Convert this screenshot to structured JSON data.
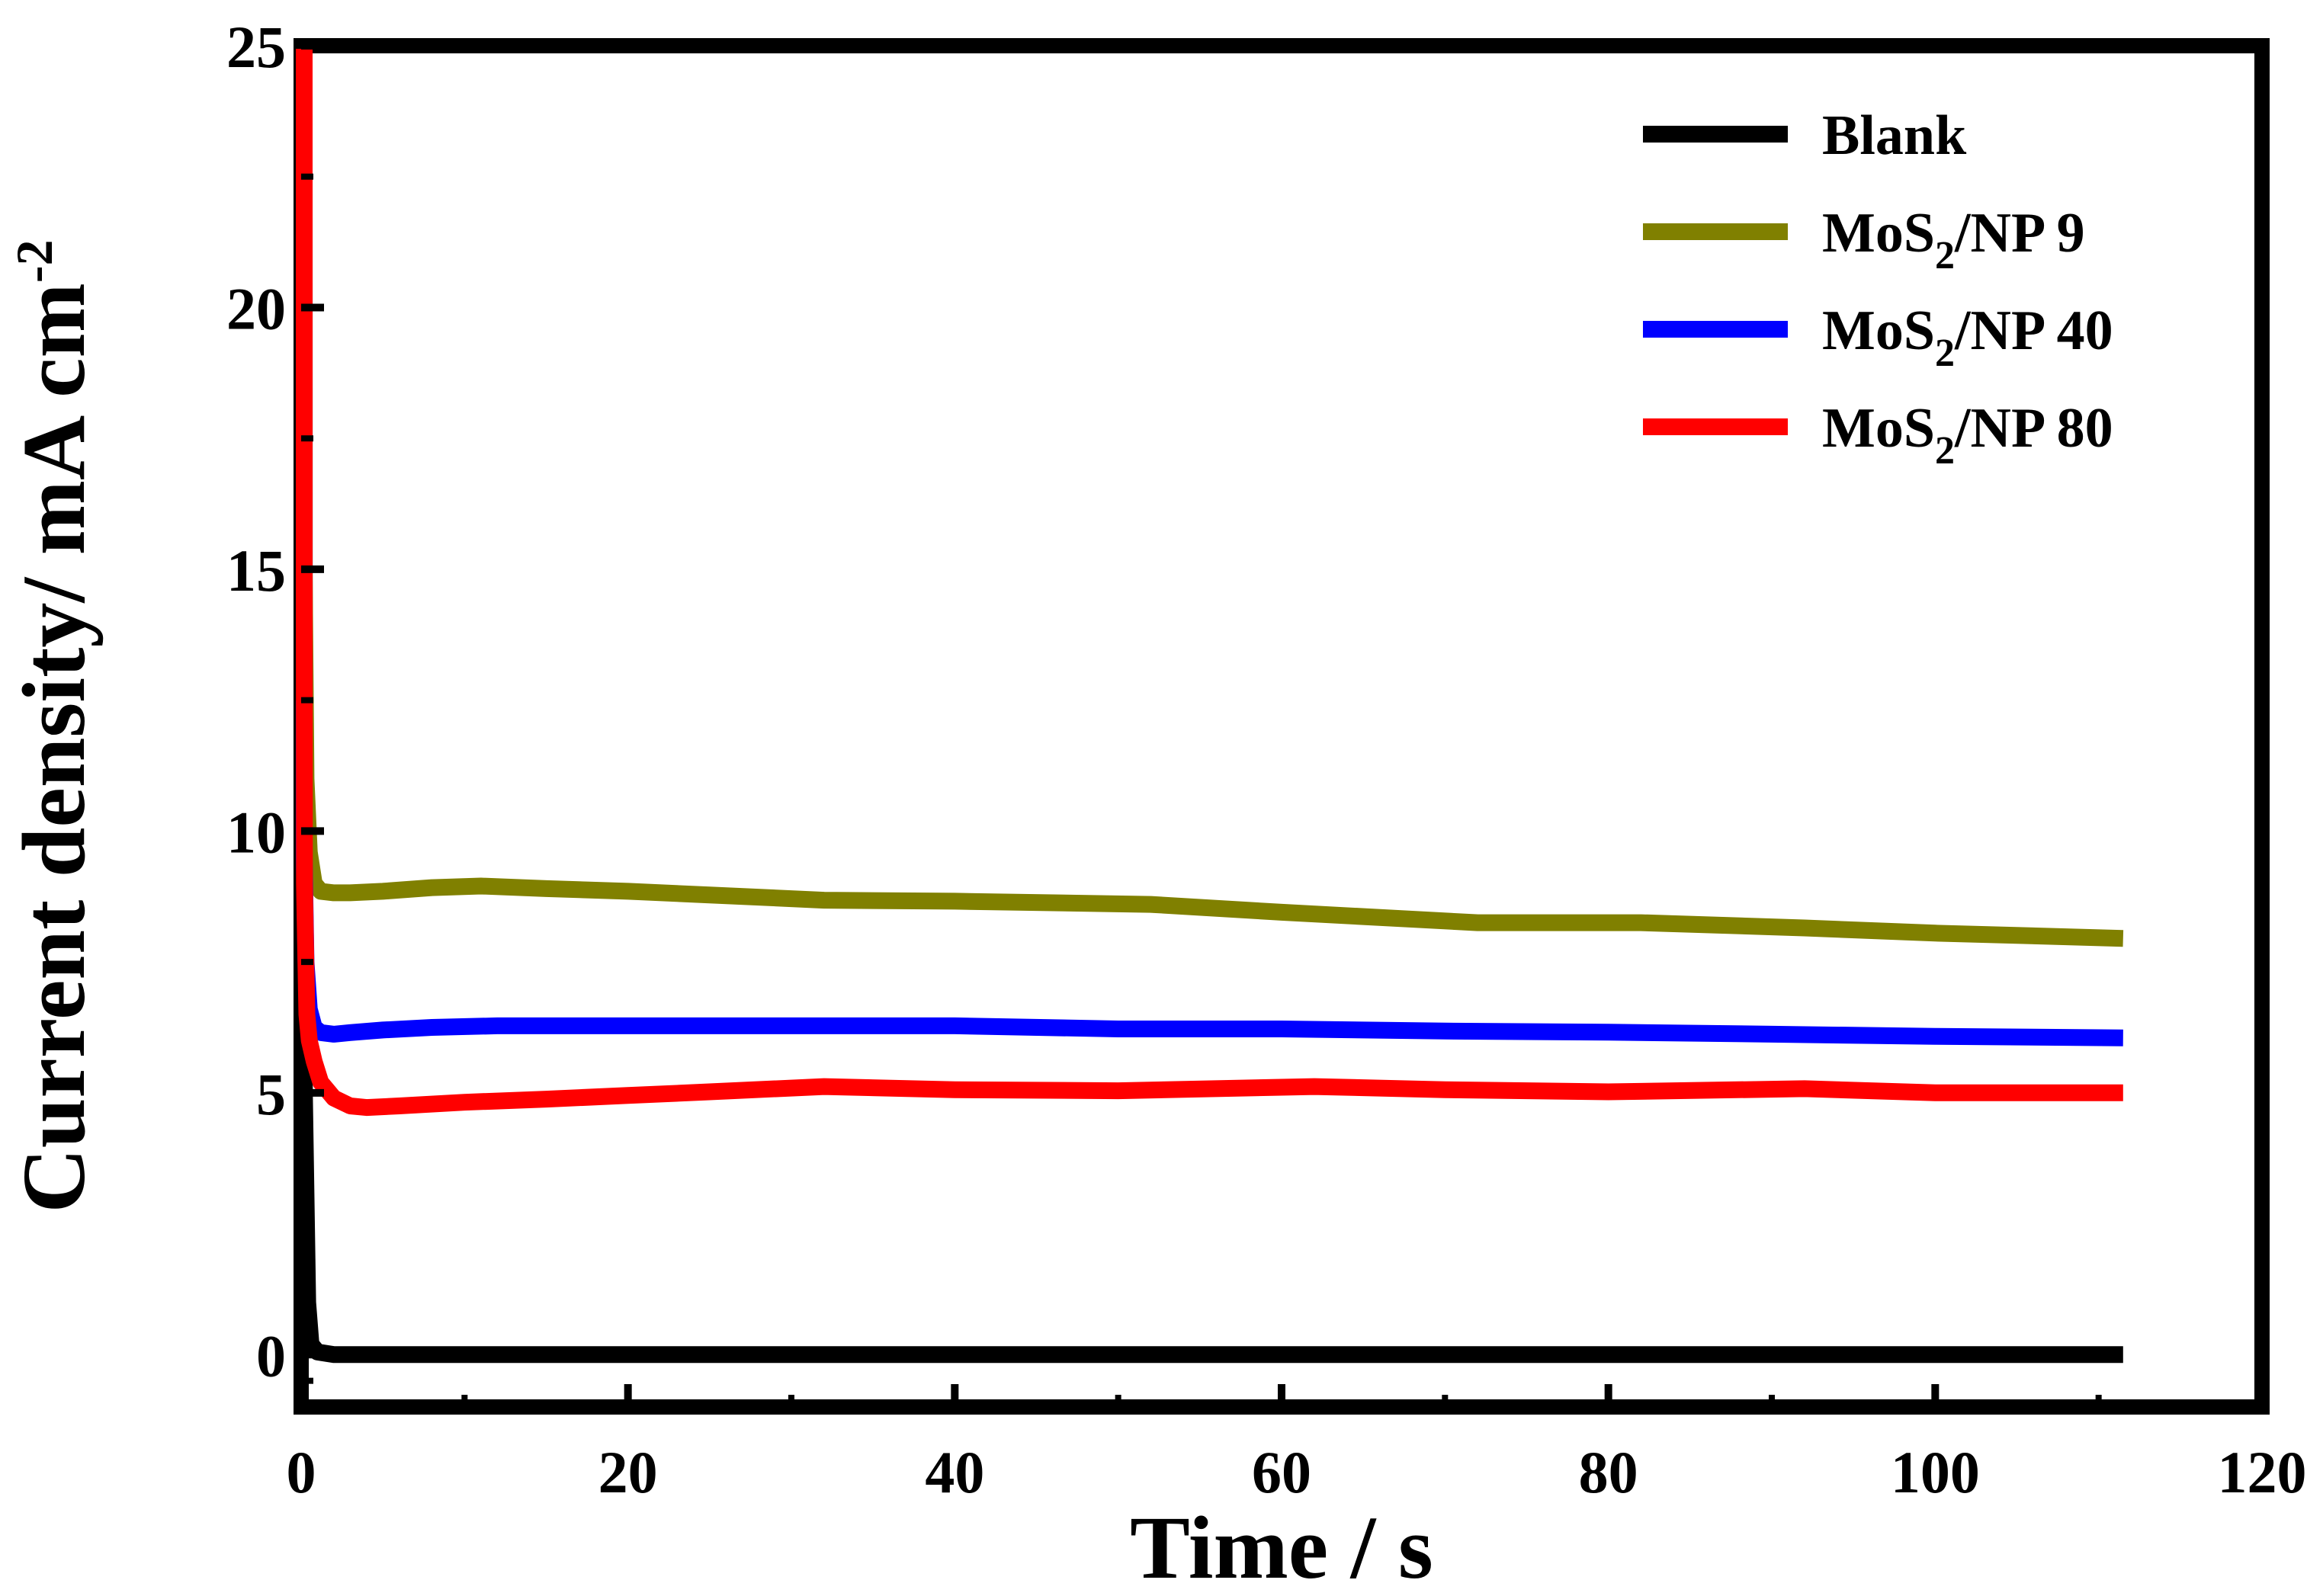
{
  "chart_data": {
    "type": "line",
    "title": "",
    "xlabel": "Time / s",
    "ylabel": "Current density/ mA cm",
    "ylabel_superscript": "-2",
    "xlim": [
      0,
      120
    ],
    "ylim": [
      -1,
      25
    ],
    "xticks": [
      0,
      20,
      40,
      60,
      80,
      100,
      120
    ],
    "yticks": [
      0,
      5,
      10,
      15,
      20,
      25
    ],
    "xtick_labels": [
      "0",
      "20",
      "40",
      "60",
      "80",
      "100",
      "120"
    ],
    "ytick_labels": [
      "0",
      "5",
      "10",
      "15",
      "20",
      "25"
    ],
    "grid": false,
    "legend_position": "top-right",
    "series": [
      {
        "name": "Blank",
        "label_main": "Blank",
        "label_sub": "",
        "label_tail": "",
        "color": "#000000",
        "x": [
          0,
          0.2,
          0.4,
          0.6,
          1,
          2,
          10,
          30,
          50,
          70,
          90,
          111.5
        ],
        "y": [
          25,
          5,
          1,
          0.2,
          0.05,
          0,
          0,
          0,
          0,
          0,
          0,
          0
        ]
      },
      {
        "name": "MoS2/NP 9",
        "label_main": "MoS",
        "label_sub": "2",
        "label_tail": "/NP 9",
        "color": "#808000",
        "x": [
          0,
          0.15,
          0.3,
          0.5,
          0.8,
          1.2,
          2,
          3,
          5,
          8,
          11,
          15,
          20,
          25,
          32,
          40,
          52,
          60,
          72,
          82,
          92,
          100,
          111.5
        ],
        "y": [
          19.8,
          15,
          11,
          9.6,
          9.0,
          8.85,
          8.82,
          8.82,
          8.85,
          8.92,
          8.95,
          8.9,
          8.85,
          8.78,
          8.68,
          8.66,
          8.6,
          8.45,
          8.25,
          8.25,
          8.15,
          8.05,
          7.95
        ]
      },
      {
        "name": "MoS2/NP 40",
        "label_main": "MoS",
        "label_sub": "2",
        "label_tail": "/NP 40",
        "color": "#0000ff",
        "x": [
          0,
          0.15,
          0.3,
          0.5,
          0.8,
          1.2,
          2,
          3,
          5,
          8,
          12,
          20,
          30,
          40,
          50,
          60,
          70,
          80,
          90,
          100,
          111.5
        ],
        "y": [
          12.5,
          9.5,
          7.5,
          6.6,
          6.25,
          6.15,
          6.12,
          6.15,
          6.2,
          6.25,
          6.28,
          6.28,
          6.28,
          6.28,
          6.22,
          6.22,
          6.18,
          6.16,
          6.12,
          6.08,
          6.05
        ]
      },
      {
        "name": "MoS2/NP 80",
        "label_main": "MoS",
        "label_sub": "2",
        "label_tail": "/NP 80",
        "color": "#ff0000",
        "x": [
          0,
          0.1,
          0.2,
          0.35,
          0.5,
          0.8,
          1.2,
          2,
          3,
          4,
          6,
          10,
          15,
          20,
          25,
          32,
          40,
          50,
          62,
          70,
          80,
          92,
          100,
          111.5
        ],
        "y": [
          25,
          15,
          9,
          6.5,
          6.0,
          5.6,
          5.2,
          4.9,
          4.75,
          4.72,
          4.75,
          4.82,
          4.88,
          4.95,
          5.02,
          5.12,
          5.06,
          5.04,
          5.12,
          5.06,
          5.02,
          5.08,
          5.0,
          5.0
        ]
      }
    ]
  }
}
